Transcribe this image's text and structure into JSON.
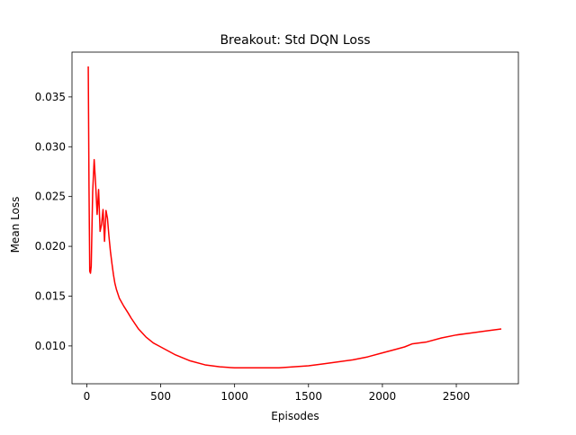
{
  "chart_data": {
    "type": "line",
    "title": "Breakout: Std DQN Loss",
    "xlabel": "Episodes",
    "ylabel": "Mean Loss",
    "xlim": [
      -100,
      2920
    ],
    "ylim": [
      0.0062,
      0.0395
    ],
    "xticks": [
      0,
      500,
      1000,
      1500,
      2000,
      2500
    ],
    "yticks": [
      0.01,
      0.015,
      0.02,
      0.025,
      0.03,
      0.035
    ],
    "xtick_labels": [
      "0",
      "500",
      "1000",
      "1500",
      "2000",
      "2500"
    ],
    "ytick_labels": [
      "0.010",
      "0.015",
      "0.020",
      "0.025",
      "0.030",
      "0.035"
    ],
    "grid": false,
    "legend": "none",
    "series": [
      {
        "color": "#ff0000",
        "x": [
          10,
          15,
          20,
          25,
          30,
          40,
          50,
          60,
          70,
          80,
          90,
          100,
          110,
          120,
          130,
          140,
          150,
          160,
          170,
          180,
          190,
          200,
          220,
          250,
          280,
          300,
          350,
          400,
          450,
          500,
          600,
          700,
          800,
          900,
          1000,
          1100,
          1150,
          1160,
          1200,
          1300,
          1400,
          1500,
          1600,
          1700,
          1800,
          1900,
          2000,
          2100,
          2150,
          2200,
          2300,
          2400,
          2500,
          2600,
          2700,
          2800
        ],
        "y": [
          0.038,
          0.026,
          0.0175,
          0.0173,
          0.018,
          0.0255,
          0.0287,
          0.0262,
          0.0232,
          0.0257,
          0.0215,
          0.0222,
          0.0237,
          0.0205,
          0.0236,
          0.0228,
          0.021,
          0.0195,
          0.0183,
          0.0172,
          0.0163,
          0.0157,
          0.0148,
          0.014,
          0.0133,
          0.0128,
          0.0117,
          0.0109,
          0.0103,
          0.0099,
          0.0091,
          0.0085,
          0.0081,
          0.0079,
          0.0078,
          0.0078,
          0.0078,
          0.0078,
          0.0078,
          0.0078,
          0.0079,
          0.008,
          0.0082,
          0.0084,
          0.0086,
          0.0089,
          0.0093,
          0.0097,
          0.0099,
          0.0102,
          0.0104,
          0.0108,
          0.0111,
          0.0113,
          0.0115,
          0.0117
        ]
      }
    ]
  }
}
